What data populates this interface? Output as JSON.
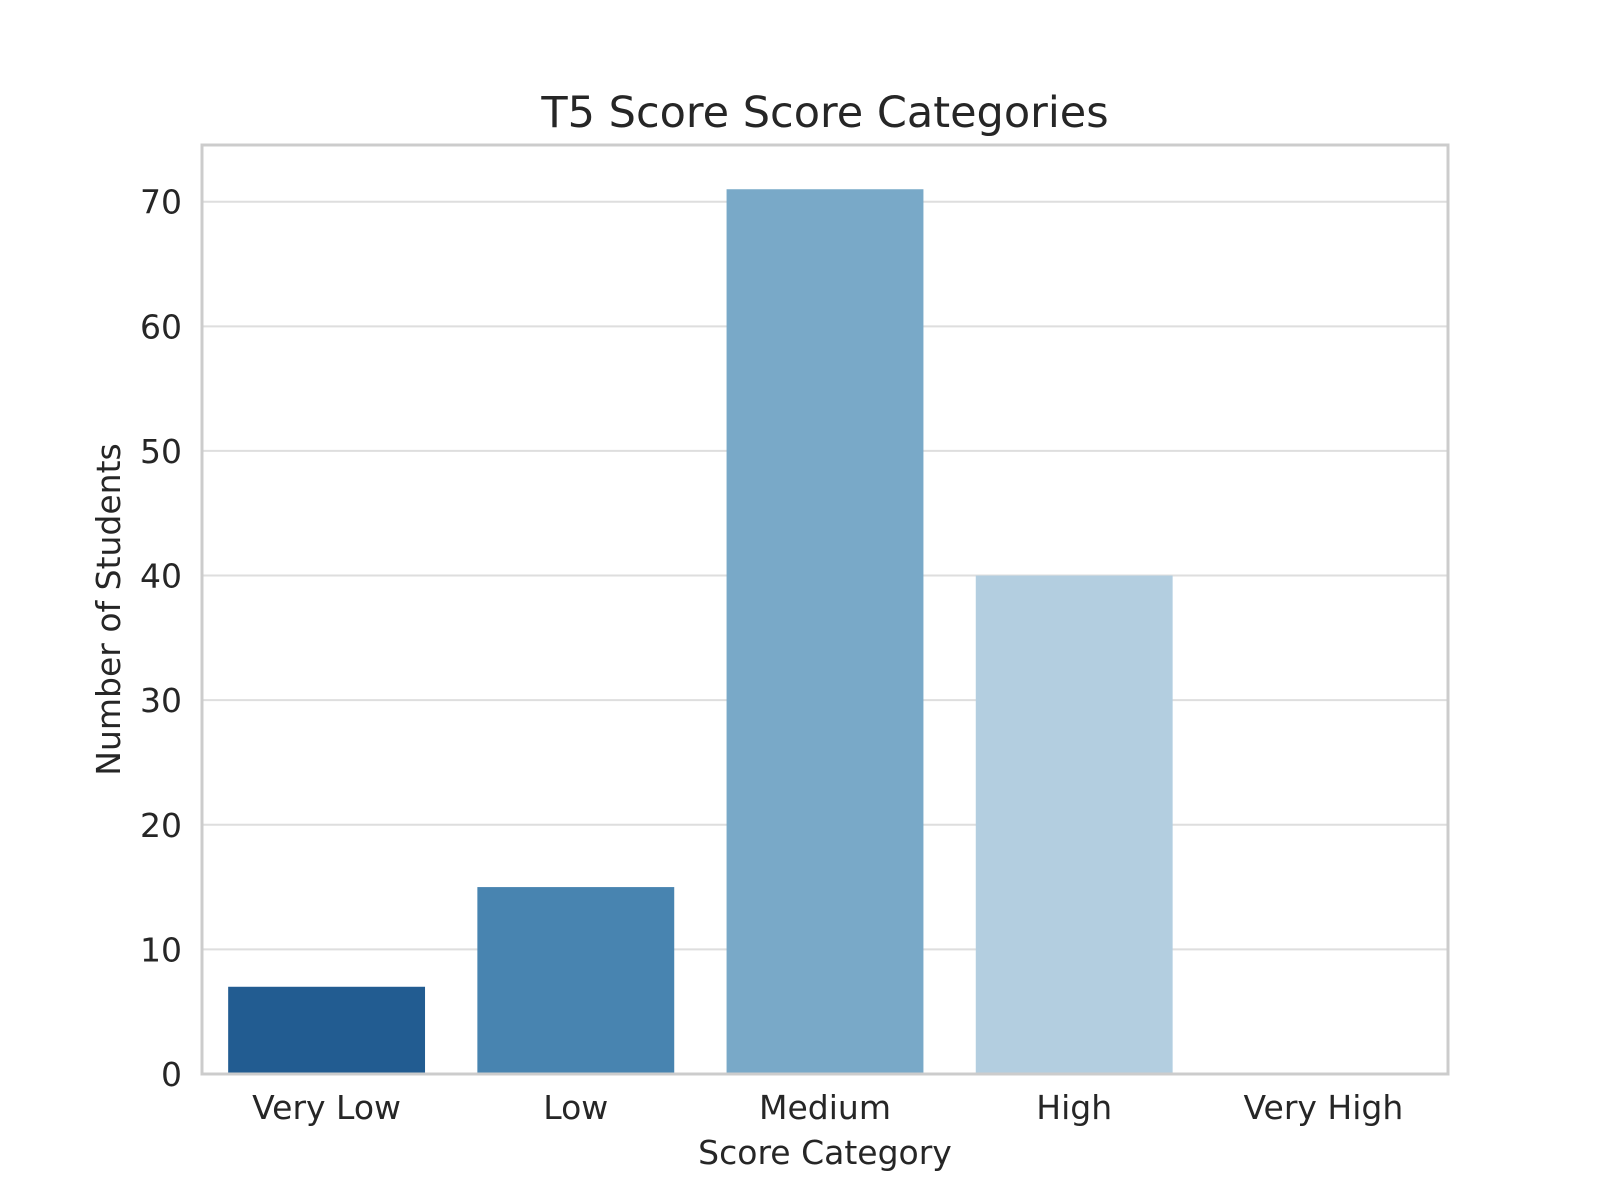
{
  "chart_data": {
    "type": "bar",
    "title": "T5 Score Score Categories",
    "xlabel": "Score Category",
    "ylabel": "Number of Students",
    "categories": [
      "Very Low",
      "Low",
      "Medium",
      "High",
      "Very High"
    ],
    "values": [
      7,
      15,
      71,
      40,
      0
    ],
    "colors": [
      "#225c91",
      "#4884b0",
      "#79a9c8",
      "#b3cee0",
      "#dbe8f2"
    ],
    "ylim": [
      0,
      74.55
    ],
    "yticks": [
      0,
      10,
      20,
      30,
      40,
      50,
      60,
      70
    ],
    "grid": true,
    "legend": "none"
  }
}
